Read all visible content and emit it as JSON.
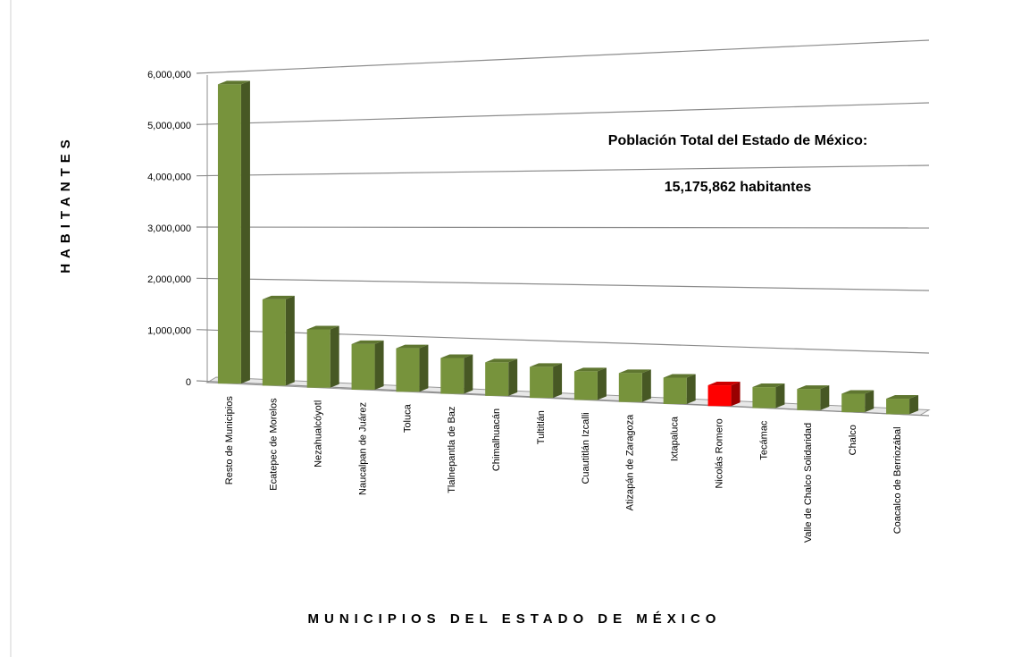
{
  "chart_data": {
    "type": "bar3d",
    "annotations": [
      "Población Total del Estado de México:",
      "15,175,862 habitantes"
    ],
    "x_label": "MUNICIPIOS DEL ESTADO DE MÉXICO",
    "y_label": "HABITANTES",
    "categories": [
      "Resto de Municipios",
      "Ecatepec de Morelos",
      "Nezahualcóyotl",
      "Naucalpan de Juárez",
      "Toluca",
      "Tlalnepantla de Baz",
      "Chimalhuacán",
      "Tultitlán",
      "Cuautitlán Izcalli",
      "Atizapán de Zaragoza",
      "Ixtapaluca",
      "Nicolás Romero",
      "Tecámac",
      "Valle de Chalco Solidaridad",
      "Chalco",
      "Coacalco de Berriozábal"
    ],
    "values": [
      5800000,
      1650000,
      1100000,
      850000,
      800000,
      650000,
      600000,
      550000,
      500000,
      500000,
      450000,
      350000,
      350000,
      350000,
      300000,
      250000
    ],
    "colors": [
      "#77933c",
      "#77933c",
      "#77933c",
      "#77933c",
      "#77933c",
      "#77933c",
      "#77933c",
      "#77933c",
      "#77933c",
      "#77933c",
      "#77933c",
      "#ff0000",
      "#77933c",
      "#77933c",
      "#77933c",
      "#77933c"
    ],
    "ylim": [
      0,
      6000000
    ],
    "yticks": [
      0,
      {
        "value": 1000000,
        "label": "1,000,000"
      },
      {
        "value": 2000000,
        "label": "2,000,000"
      },
      {
        "value": 3000000,
        "label": "3,000,000"
      },
      {
        "value": 4000000,
        "label": "4,000,000"
      },
      {
        "value": 5000000,
        "label": "5,000,000"
      },
      {
        "value": 6000000,
        "label": "6,000,000"
      }
    ],
    "grid": true
  }
}
